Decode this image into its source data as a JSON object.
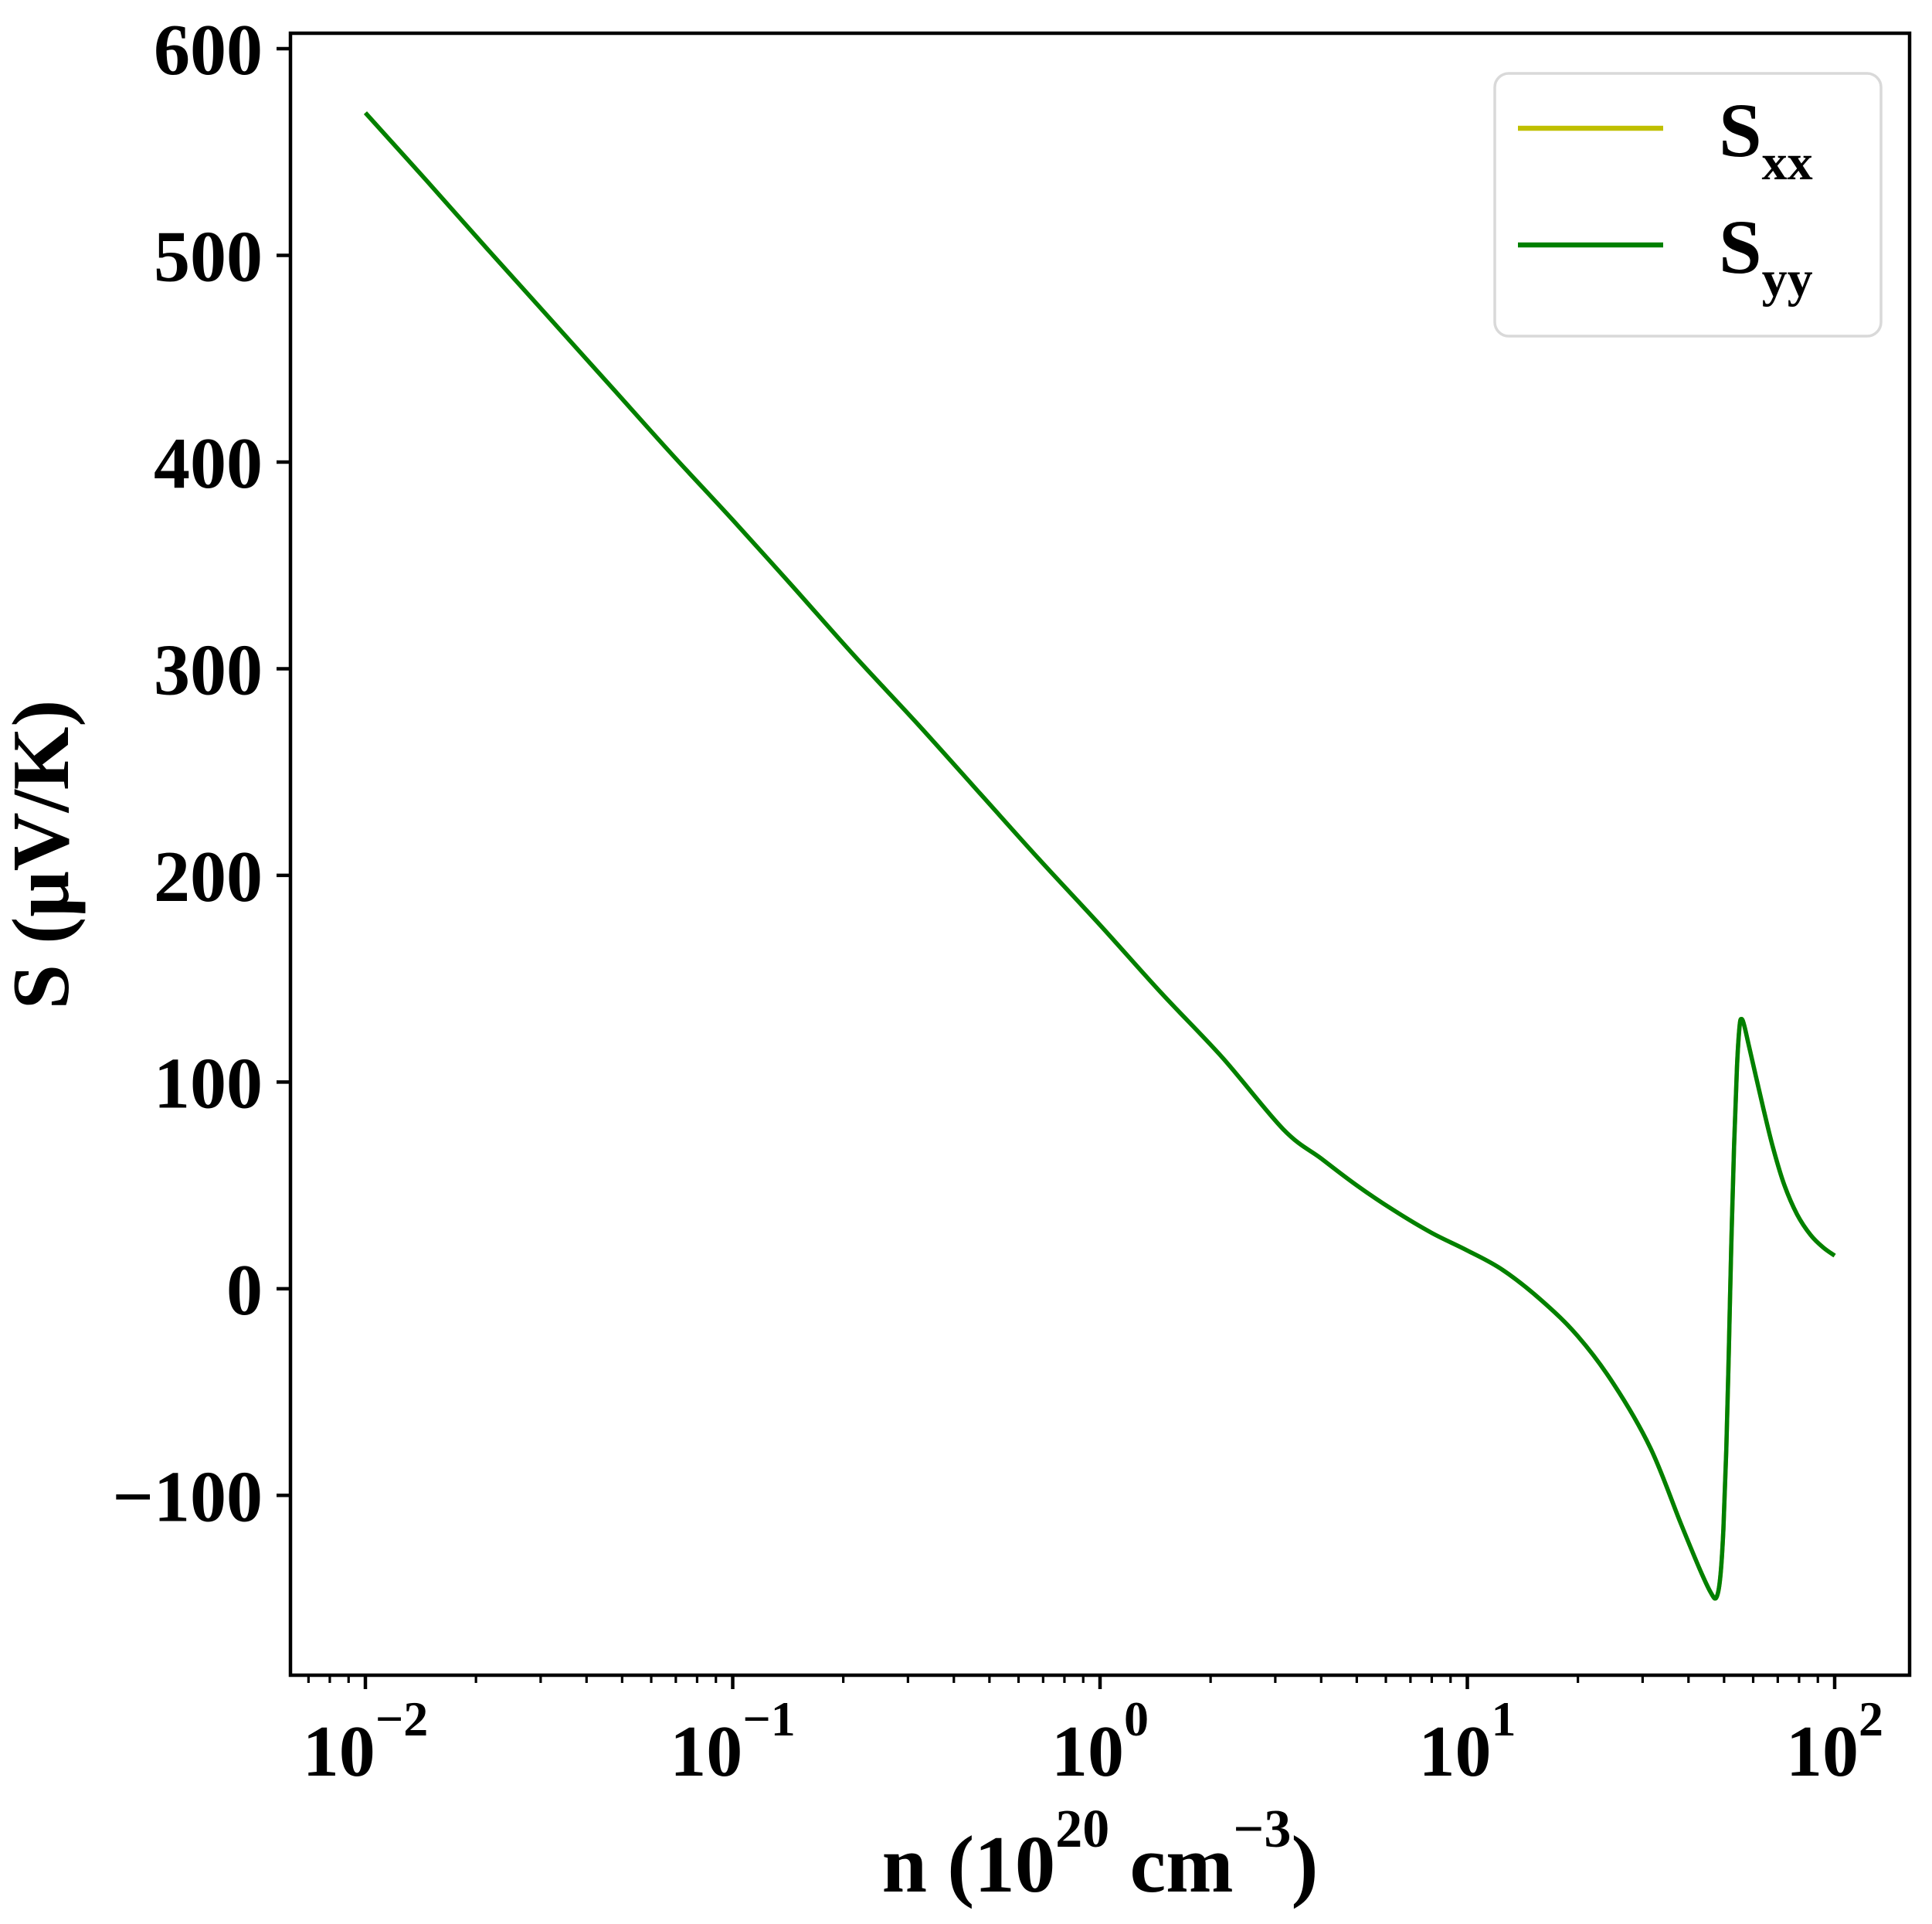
{
  "figure": {
    "background": "#ffffff",
    "spine_color": "#000000",
    "tick_color": "#000000",
    "legend_border_color": "#d9d9d9",
    "legend_fill": "#ffffff"
  },
  "chart_data": {
    "type": "line",
    "title": "",
    "xscale": "log",
    "xlabel_parts": {
      "prefix": "n (10",
      "sup1": "20",
      "mid": " cm",
      "sup2": "−3",
      "suffix": ")"
    },
    "ylabel": "S (μV/K)",
    "xlim_log10": [
      -2.204,
      2.204
    ],
    "ylim": [
      -187,
      607.5
    ],
    "grid": false,
    "x_major_ticks": [
      {
        "exponent": -2,
        "base": "10",
        "sup": "−2"
      },
      {
        "exponent": -1,
        "base": "10",
        "sup": "−1"
      },
      {
        "exponent": 0,
        "base": "10",
        "sup": "0"
      },
      {
        "exponent": 1,
        "base": "10",
        "sup": "1"
      },
      {
        "exponent": 2,
        "base": "10",
        "sup": "2"
      }
    ],
    "x_minor_ticks": [
      0.007,
      0.008,
      0.009,
      0.02,
      0.03,
      0.04,
      0.05,
      0.06,
      0.07,
      0.08,
      0.09,
      0.2,
      0.3,
      0.4,
      0.5,
      0.6,
      0.7,
      0.8,
      0.9,
      2,
      3,
      4,
      5,
      6,
      7,
      8,
      9,
      20,
      30,
      40,
      50,
      60,
      70,
      80,
      90
    ],
    "y_ticks": [
      {
        "value": 600,
        "label": "600"
      },
      {
        "value": 500,
        "label": "500"
      },
      {
        "value": 400,
        "label": "400"
      },
      {
        "value": 300,
        "label": "300"
      },
      {
        "value": 200,
        "label": "200"
      },
      {
        "value": 100,
        "label": "100"
      },
      {
        "value": 0,
        "label": "0"
      },
      {
        "value": -100,
        "label": "−100"
      }
    ],
    "legend": {
      "location": "upper right",
      "entries": [
        {
          "label_main": "S",
          "label_sub": "xx",
          "color": "#bfbf00"
        },
        {
          "label_main": "S",
          "label_sub": "yy",
          "color": "#008000"
        }
      ]
    },
    "series": [
      {
        "name": "S_xx",
        "color": "#bfbf00",
        "points": [
          [
            0.01,
            569
          ],
          [
            0.0147,
            536
          ],
          [
            0.0215,
            503
          ],
          [
            0.0316,
            470
          ],
          [
            0.0464,
            437
          ],
          [
            0.0681,
            404
          ],
          [
            0.1,
            372
          ],
          [
            0.147,
            339
          ],
          [
            0.215,
            306
          ],
          [
            0.316,
            274
          ],
          [
            0.464,
            241
          ],
          [
            0.681,
            208
          ],
          [
            1.0,
            176
          ],
          [
            1.47,
            143
          ],
          [
            2.15,
            112
          ],
          [
            3.16,
            77
          ],
          [
            4.0,
            63
          ],
          [
            5.0,
            50
          ],
          [
            6.3,
            38
          ],
          [
            8.0,
            27
          ],
          [
            10,
            18.5
          ],
          [
            12.5,
            9
          ],
          [
            16,
            -6
          ],
          [
            20,
            -23
          ],
          [
            25,
            -46
          ],
          [
            31.5,
            -77
          ],
          [
            38,
            -113
          ],
          [
            43,
            -136
          ],
          [
            46,
            -147
          ],
          [
            47.6,
            -149.5
          ],
          [
            48.8,
            -140
          ],
          [
            49.8,
            -116
          ],
          [
            50.7,
            -78
          ],
          [
            51.5,
            -30
          ],
          [
            52.3,
            20
          ],
          [
            53.2,
            68
          ],
          [
            54.2,
            107
          ],
          [
            55.1,
            127
          ],
          [
            55.8,
            130.5
          ],
          [
            56.8,
            127
          ],
          [
            58.5,
            117
          ],
          [
            61,
            103
          ],
          [
            64,
            87
          ],
          [
            68,
            68
          ],
          [
            73,
            50
          ],
          [
            79,
            36
          ],
          [
            86,
            26
          ],
          [
            93,
            20
          ],
          [
            100,
            16
          ]
        ]
      },
      {
        "name": "S_yy",
        "color": "#008000",
        "points": [
          [
            0.01,
            569
          ],
          [
            0.0147,
            536
          ],
          [
            0.0215,
            503
          ],
          [
            0.0316,
            470
          ],
          [
            0.0464,
            437
          ],
          [
            0.0681,
            404
          ],
          [
            0.1,
            372
          ],
          [
            0.147,
            339
          ],
          [
            0.215,
            306
          ],
          [
            0.316,
            274
          ],
          [
            0.464,
            241
          ],
          [
            0.681,
            208
          ],
          [
            1.0,
            176
          ],
          [
            1.47,
            143
          ],
          [
            2.15,
            112
          ],
          [
            3.16,
            77
          ],
          [
            4.0,
            63
          ],
          [
            5.0,
            50
          ],
          [
            6.3,
            38
          ],
          [
            8.0,
            27
          ],
          [
            10,
            18.5
          ],
          [
            12.5,
            9
          ],
          [
            16,
            -6
          ],
          [
            20,
            -23
          ],
          [
            25,
            -46
          ],
          [
            31.5,
            -77
          ],
          [
            38,
            -113
          ],
          [
            43,
            -136
          ],
          [
            46,
            -147
          ],
          [
            47.6,
            -149.5
          ],
          [
            48.8,
            -140
          ],
          [
            49.8,
            -116
          ],
          [
            50.7,
            -78
          ],
          [
            51.5,
            -30
          ],
          [
            52.3,
            20
          ],
          [
            53.2,
            68
          ],
          [
            54.2,
            107
          ],
          [
            55.1,
            127
          ],
          [
            55.8,
            130.5
          ],
          [
            56.8,
            127
          ],
          [
            58.5,
            117
          ],
          [
            61,
            103
          ],
          [
            64,
            87
          ],
          [
            68,
            68
          ],
          [
            73,
            50
          ],
          [
            79,
            36
          ],
          [
            86,
            26
          ],
          [
            93,
            20
          ],
          [
            100,
            16
          ]
        ]
      }
    ]
  }
}
